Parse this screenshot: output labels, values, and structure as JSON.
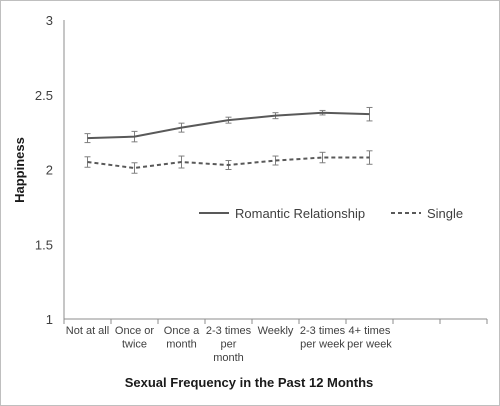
{
  "chart_data": {
    "type": "line",
    "title": "",
    "xlabel": "Sexual Frequency in the Past 12 Months",
    "ylabel": "Happiness",
    "ylim": [
      1,
      3
    ],
    "yticks": [
      "1",
      "1.5",
      "2",
      "2.5",
      "3"
    ],
    "grid": false,
    "legend_position": "right",
    "categories": [
      [
        "Not at all"
      ],
      [
        "Once or",
        "twice"
      ],
      [
        "Once a",
        "month"
      ],
      [
        "2-3 times",
        "per",
        "month"
      ],
      [
        "Weekly"
      ],
      [
        "2-3 times",
        "per week"
      ],
      [
        "4+ times",
        "per week"
      ]
    ],
    "series": [
      {
        "name": "Romantic Relationship",
        "style": "solid",
        "color": "#595959",
        "values": [
          2.21,
          2.22,
          2.28,
          2.33,
          2.36,
          2.38,
          2.37
        ],
        "errors": [
          0.03,
          0.035,
          0.03,
          0.02,
          0.02,
          0.015,
          0.045
        ]
      },
      {
        "name": "Single",
        "style": "dashed",
        "color": "#595959",
        "values": [
          2.05,
          2.01,
          2.05,
          2.03,
          2.06,
          2.08,
          2.08
        ],
        "errors": [
          0.035,
          0.035,
          0.04,
          0.03,
          0.03,
          0.035,
          0.045
        ]
      }
    ]
  }
}
